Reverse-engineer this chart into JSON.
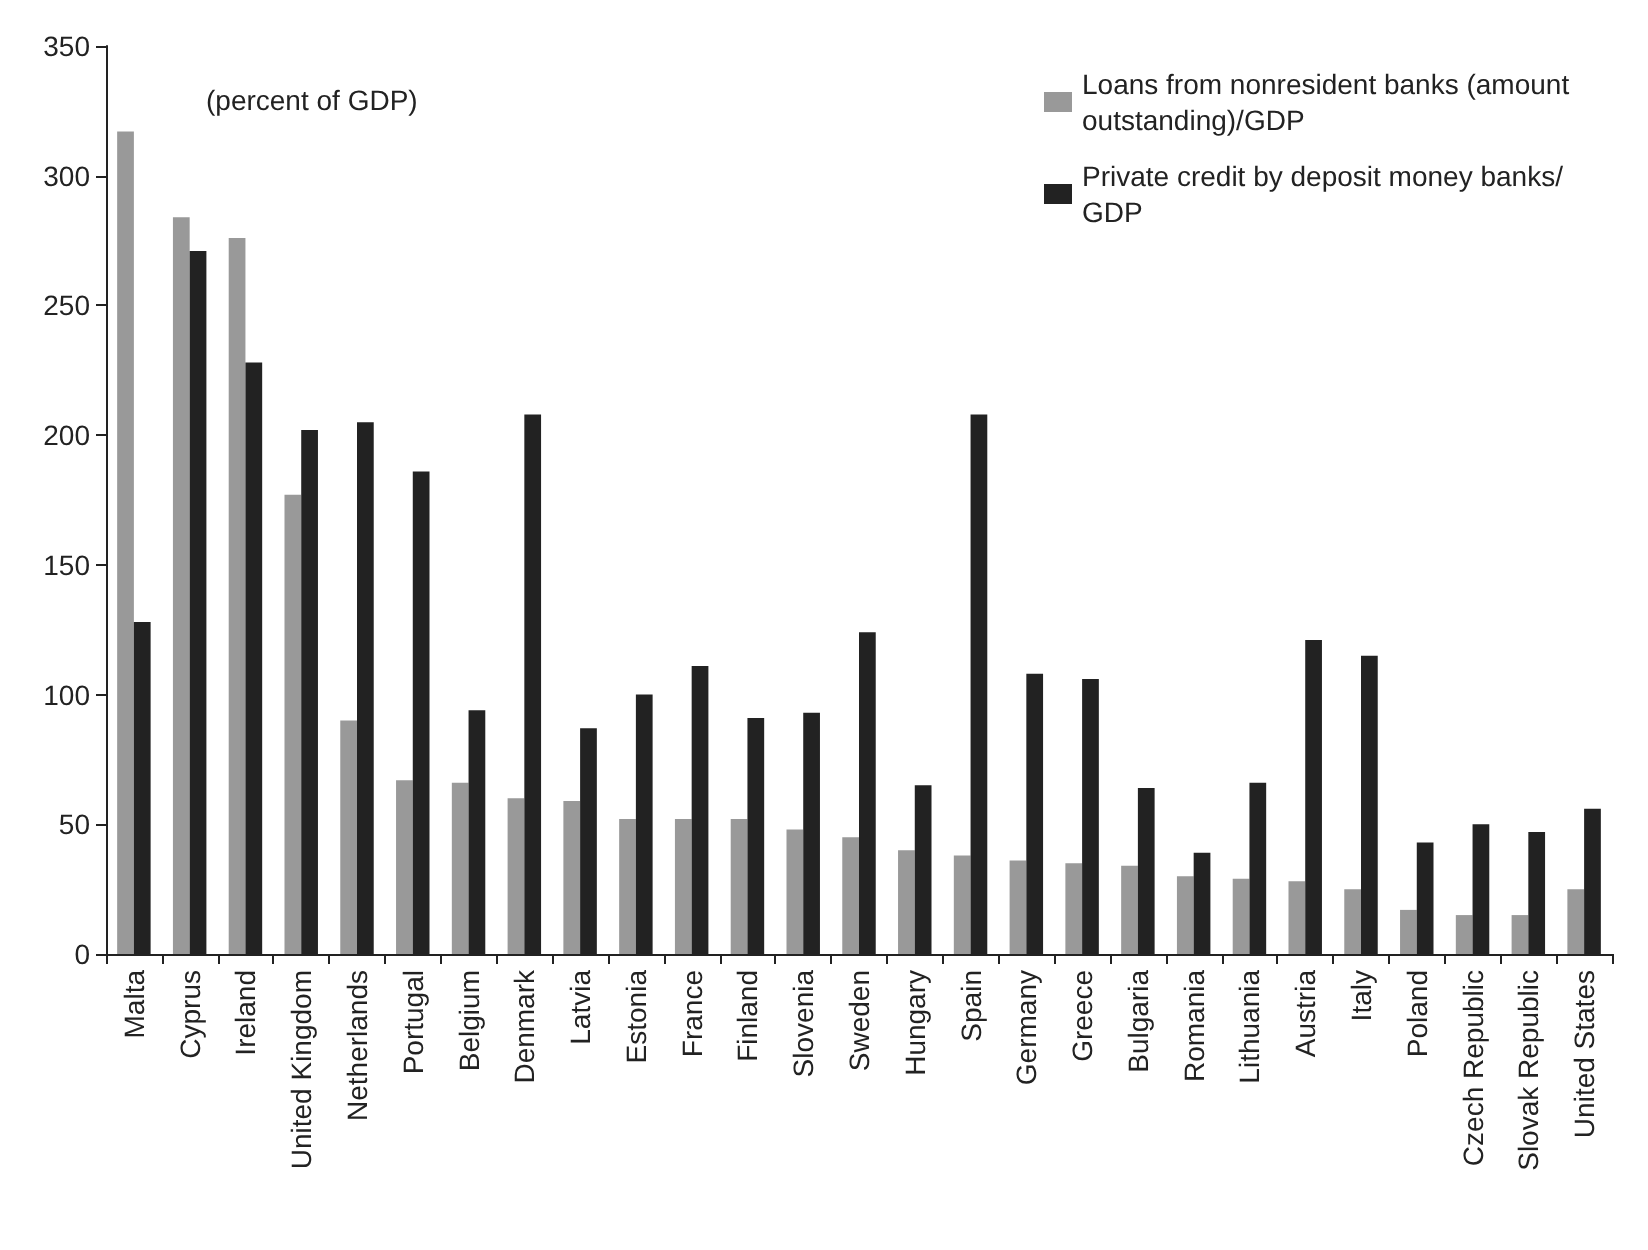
{
  "chart_data": {
    "type": "bar",
    "annotations": [
      "(percent of GDP)"
    ],
    "categories": [
      "Malta",
      "Cyprus",
      "Ireland",
      "United Kingdom",
      "Netherlands",
      "Portugal",
      "Belgium",
      "Denmark",
      "Latvia",
      "Estonia",
      "France",
      "Finland",
      "Slovenia",
      "Sweden",
      "Hungary",
      "Spain",
      "Germany",
      "Greece",
      "Bulgaria",
      "Romania",
      "Lithuania",
      "Austria",
      "Italy",
      "Poland",
      "Czech Republic",
      "Slovak Republic",
      "United States"
    ],
    "series": [
      {
        "name": "Loans from nonresident banks (amount outstanding)/GDP",
        "color": "#999999",
        "values": [
          317,
          284,
          276,
          177,
          90,
          67,
          66,
          60,
          59,
          52,
          52,
          52,
          48,
          45,
          40,
          38,
          36,
          35,
          34,
          30,
          29,
          28,
          25,
          17,
          15,
          15,
          25
        ]
      },
      {
        "name": "Private credit by deposit money banks/GDP",
        "color": "#222222",
        "values": [
          128,
          271,
          228,
          202,
          205,
          186,
          94,
          208,
          87,
          100,
          111,
          91,
          93,
          124,
          65,
          208,
          108,
          106,
          64,
          39,
          66,
          121,
          115,
          43,
          50,
          47,
          56
        ]
      }
    ],
    "ylim": [
      0,
      350
    ],
    "yticks": [
      0,
      50,
      100,
      150,
      200,
      250,
      300,
      350
    ],
    "grid": false,
    "legend": "top right"
  }
}
